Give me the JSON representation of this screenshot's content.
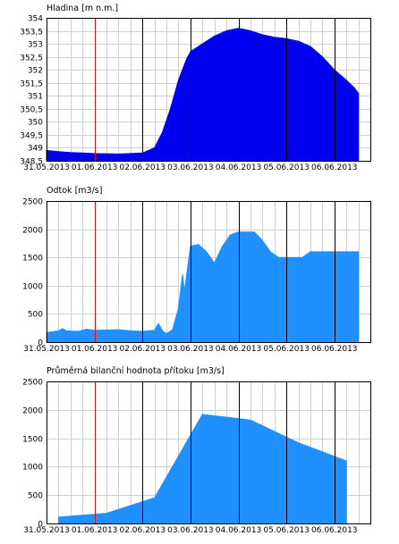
{
  "chart_data": [
    {
      "type": "area",
      "title": "Hladina [m n.m.]",
      "color": "#0000ee",
      "x_labels": [
        "31.05.2013",
        "01.06.2013",
        "02.06.2013",
        "03.06.2013",
        "04.06.2013",
        "05.06.2013",
        "06.06.2013"
      ],
      "x_range": [
        "31.05.2013 00:00",
        "06.06.2013 18:00"
      ],
      "ylim": [
        348.5,
        354
      ],
      "yticks": [
        348.5,
        349,
        349.5,
        350,
        350.5,
        351,
        351.5,
        352,
        352.5,
        353,
        353.5,
        354
      ],
      "ytick_labels": [
        "348,5",
        "349",
        "349,5",
        "350",
        "350,5",
        "351",
        "351,5",
        "352",
        "352,5",
        "353",
        "353,5",
        "354"
      ],
      "marker_line_x": "01.06.2013 00:00",
      "vlines_x": [
        "02.06.2013 00:00",
        "03.06.2013 00:00",
        "04.06.2013 00:00",
        "05.06.2013 00:00",
        "06.06.2013 00:00"
      ],
      "grid": true,
      "points": [
        [
          "31.05.2013 00:00",
          348.9
        ],
        [
          "31.05.2013 06:00",
          348.85
        ],
        [
          "31.05.2013 12:00",
          348.82
        ],
        [
          "31.05.2013 18:00",
          348.8
        ],
        [
          "01.06.2013 00:00",
          348.78
        ],
        [
          "01.06.2013 06:00",
          348.77
        ],
        [
          "01.06.2013 12:00",
          348.76
        ],
        [
          "01.06.2013 18:00",
          348.78
        ],
        [
          "02.06.2013 00:00",
          348.8
        ],
        [
          "02.06.2013 06:00",
          349.0
        ],
        [
          "02.06.2013 10:00",
          349.6
        ],
        [
          "02.06.2013 14:00",
          350.5
        ],
        [
          "02.06.2013 18:00",
          351.6
        ],
        [
          "02.06.2013 22:00",
          352.4
        ],
        [
          "03.06.2013 00:00",
          352.7
        ],
        [
          "03.06.2013 06:00",
          353.0
        ],
        [
          "03.06.2013 12:00",
          353.3
        ],
        [
          "03.06.2013 18:00",
          353.5
        ],
        [
          "04.06.2013 00:00",
          353.6
        ],
        [
          "04.06.2013 06:00",
          353.5
        ],
        [
          "04.06.2013 12:00",
          353.35
        ],
        [
          "04.06.2013 18:00",
          353.25
        ],
        [
          "05.06.2013 00:00",
          353.2
        ],
        [
          "05.06.2013 06:00",
          353.1
        ],
        [
          "05.06.2013 12:00",
          352.9
        ],
        [
          "05.06.2013 18:00",
          352.5
        ],
        [
          "06.06.2013 00:00",
          352.0
        ],
        [
          "06.06.2013 06:00",
          351.6
        ],
        [
          "06.06.2013 10:00",
          351.3
        ],
        [
          "06.06.2013 12:00",
          351.1
        ]
      ]
    },
    {
      "type": "area",
      "title": "Odtok [m3/s]",
      "color": "#1e90ff",
      "x_labels": [
        "31.05.2013",
        "01.06.2013",
        "02.06.2013",
        "03.06.2013",
        "04.06.2013",
        "05.06.2013",
        "06.06.2013"
      ],
      "x_range": [
        "31.05.2013 00:00",
        "06.06.2013 18:00"
      ],
      "ylim": [
        0,
        2500
      ],
      "yticks": [
        0,
        500,
        1000,
        1500,
        2000,
        2500
      ],
      "ytick_labels": [
        "0",
        "500",
        "1000",
        "1500",
        "2000",
        "2500"
      ],
      "marker_line_x": "01.06.2013 00:00",
      "vlines_x": [
        "02.06.2013 00:00",
        "03.06.2013 00:00",
        "04.06.2013 00:00",
        "05.06.2013 00:00",
        "06.06.2013 00:00"
      ],
      "grid": true,
      "points": [
        [
          "31.05.2013 00:00",
          170
        ],
        [
          "31.05.2013 06:00",
          200
        ],
        [
          "31.05.2013 08:00",
          240
        ],
        [
          "31.05.2013 10:00",
          200
        ],
        [
          "31.05.2013 16:00",
          190
        ],
        [
          "31.05.2013 20:00",
          230
        ],
        [
          "01.06.2013 00:00",
          210
        ],
        [
          "01.06.2013 12:00",
          220
        ],
        [
          "01.06.2013 18:00",
          200
        ],
        [
          "02.06.2013 00:00",
          190
        ],
        [
          "02.06.2013 06:00",
          210
        ],
        [
          "02.06.2013 08:00",
          330
        ],
        [
          "02.06.2013 10:00",
          200
        ],
        [
          "02.06.2013 12:00",
          150
        ],
        [
          "02.06.2013 15:00",
          220
        ],
        [
          "02.06.2013 18:00",
          600
        ],
        [
          "02.06.2013 20:00",
          1200
        ],
        [
          "02.06.2013 21:00",
          900
        ],
        [
          "03.06.2013 00:00",
          1700
        ],
        [
          "03.06.2013 04:00",
          1730
        ],
        [
          "03.06.2013 08:00",
          1600
        ],
        [
          "03.06.2013 12:00",
          1400
        ],
        [
          "03.06.2013 16:00",
          1700
        ],
        [
          "03.06.2013 20:00",
          1900
        ],
        [
          "04.06.2013 00:00",
          1950
        ],
        [
          "04.06.2013 08:00",
          1950
        ],
        [
          "04.06.2013 12:00",
          1800
        ],
        [
          "04.06.2013 16:00",
          1600
        ],
        [
          "04.06.2013 20:00",
          1500
        ],
        [
          "05.06.2013 00:00",
          1500
        ],
        [
          "05.06.2013 08:00",
          1500
        ],
        [
          "05.06.2013 12:00",
          1600
        ],
        [
          "06.06.2013 00:00",
          1600
        ],
        [
          "06.06.2013 12:00",
          1600
        ]
      ]
    },
    {
      "type": "area",
      "title": "Průměrná bilanční hodnota přítoku [m3/s]",
      "color": "#1e90ff",
      "x_labels": [
        "31.05.2013",
        "01.06.2013",
        "02.06.2013",
        "03.06.2013",
        "04.06.2013",
        "05.06.2013",
        "06.06.2013"
      ],
      "x_range": [
        "31.05.2013 00:00",
        "06.06.2013 18:00"
      ],
      "ylim": [
        0,
        2500
      ],
      "yticks": [
        0,
        500,
        1000,
        1500,
        2000,
        2500
      ],
      "ytick_labels": [
        "0",
        "500",
        "1000",
        "1500",
        "2000",
        "2500"
      ],
      "marker_line_x": "01.06.2013 00:00",
      "vlines_x": [
        "02.06.2013 00:00",
        "03.06.2013 00:00",
        "04.06.2013 00:00",
        "05.06.2013 00:00",
        "06.06.2013 00:00"
      ],
      "grid": true,
      "points": [
        [
          "31.05.2013 06:00",
          110
        ],
        [
          "01.06.2013 06:00",
          180
        ],
        [
          "02.06.2013 06:00",
          450
        ],
        [
          "03.06.2013 06:00",
          1920
        ],
        [
          "04.06.2013 06:00",
          1820
        ],
        [
          "05.06.2013 06:00",
          1420
        ],
        [
          "06.06.2013 06:00",
          1100
        ]
      ]
    }
  ]
}
